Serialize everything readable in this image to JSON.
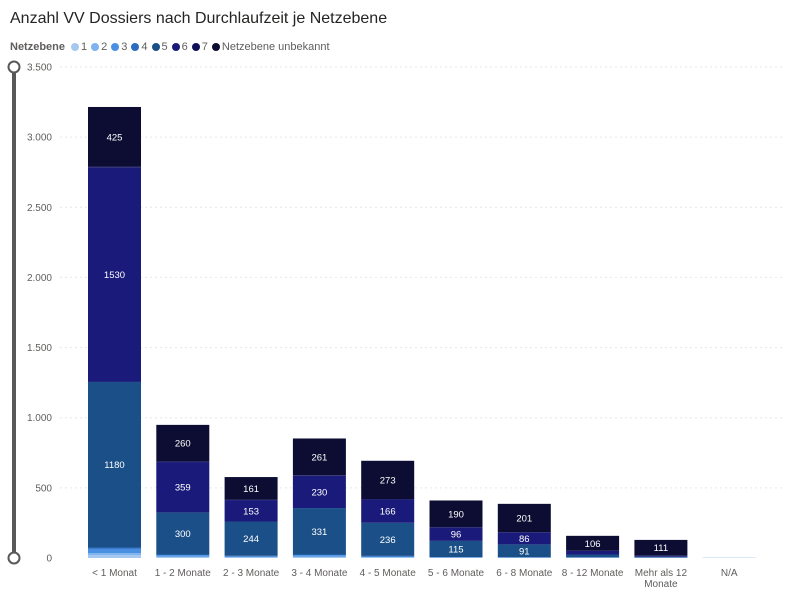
{
  "title": "Anzahl VV Dossiers nach Durchlaufzeit je Netzebene",
  "legend": {
    "title": "Netzebene",
    "items": [
      {
        "label": "1",
        "color": "#a6c8f0"
      },
      {
        "label": "2",
        "color": "#7fb3ee"
      },
      {
        "label": "3",
        "color": "#4a90e2"
      },
      {
        "label": "4",
        "color": "#2b6cc0"
      },
      {
        "label": "5",
        "color": "#1b4f88"
      },
      {
        "label": "6",
        "color": "#1a1a7a"
      },
      {
        "label": "7",
        "color": "#0f1157"
      },
      {
        "label": "Netzebene unbekannt",
        "color": "#0d0d33"
      }
    ]
  },
  "chart_data": {
    "type": "bar",
    "stacked": true,
    "title": "Anzahl VV Dossiers nach Durchlaufzeit je Netzebene",
    "xlabel": "",
    "ylabel": "",
    "ylim": [
      0,
      3500
    ],
    "yticks": [
      0,
      500,
      1000,
      1500,
      2000,
      2500,
      3000,
      3500
    ],
    "ytick_labels": [
      "0",
      "500",
      "1.000",
      "1.500",
      "2.000",
      "2.500",
      "3.000",
      "3.500"
    ],
    "grid": true,
    "legend_position": "top-left",
    "categories": [
      "< 1 Monat",
      "1 - 2 Monate",
      "2 - 3 Monate",
      "3 - 4 Monate",
      "4 - 5 Monate",
      "5 - 6 Monate",
      "6 - 8 Monate",
      "8 - 12 Monate",
      "Mehr als 12 Monate",
      "N/A"
    ],
    "series": [
      {
        "name": "1",
        "color": "#a6c8f0",
        "values": [
          20,
          5,
          3,
          5,
          3,
          1,
          1,
          1,
          1,
          2
        ]
      },
      {
        "name": "2",
        "color": "#7fb3ee",
        "values": [
          15,
          5,
          3,
          5,
          3,
          2,
          1,
          1,
          1,
          1
        ]
      },
      {
        "name": "3",
        "color": "#4a90e2",
        "values": [
          30,
          10,
          6,
          10,
          5,
          2,
          2,
          1,
          1,
          0
        ]
      },
      {
        "name": "4",
        "color": "#2b6cc0",
        "values": [
          10,
          5,
          4,
          5,
          4,
          2,
          2,
          2,
          1,
          0
        ]
      },
      {
        "name": "5",
        "color": "#1b4f88",
        "values": [
          1180,
          300,
          244,
          331,
          236,
          115,
          91,
          20,
          5,
          0
        ]
      },
      {
        "name": "6",
        "color": "#1a1a7a",
        "values": [
          1530,
          359,
          153,
          230,
          166,
          96,
          86,
          25,
          8,
          0
        ]
      },
      {
        "name": "7",
        "color": "#0f1157",
        "values": [
          5,
          5,
          3,
          5,
          3,
          2,
          2,
          2,
          1,
          0
        ]
      },
      {
        "name": "Netzebene unbekannt",
        "color": "#0d0d33",
        "values": [
          425,
          260,
          161,
          261,
          273,
          190,
          201,
          106,
          111,
          0
        ]
      }
    ],
    "data_labels": [
      {
        "category": "< 1 Monat",
        "series": "5",
        "text": "1180"
      },
      {
        "category": "< 1 Monat",
        "series": "6",
        "text": "1530"
      },
      {
        "category": "< 1 Monat",
        "series": "Netzebene unbekannt",
        "text": "425"
      },
      {
        "category": "1 - 2 Monate",
        "series": "5",
        "text": "300"
      },
      {
        "category": "1 - 2 Monate",
        "series": "6",
        "text": "359"
      },
      {
        "category": "1 - 2 Monate",
        "series": "Netzebene unbekannt",
        "text": "260"
      },
      {
        "category": "2 - 3 Monate",
        "series": "5",
        "text": "244"
      },
      {
        "category": "2 - 3 Monate",
        "series": "6",
        "text": "153"
      },
      {
        "category": "2 - 3 Monate",
        "series": "Netzebene unbekannt",
        "text": "161"
      },
      {
        "category": "3 - 4 Monate",
        "series": "5",
        "text": "331"
      },
      {
        "category": "3 - 4 Monate",
        "series": "6",
        "text": "230"
      },
      {
        "category": "3 - 4 Monate",
        "series": "Netzebene unbekannt",
        "text": "261"
      },
      {
        "category": "4 - 5 Monate",
        "series": "5",
        "text": "236"
      },
      {
        "category": "4 - 5 Monate",
        "series": "6",
        "text": "166"
      },
      {
        "category": "4 - 5 Monate",
        "series": "Netzebene unbekannt",
        "text": "273"
      },
      {
        "category": "5 - 6 Monate",
        "series": "5",
        "text": "115"
      },
      {
        "category": "5 - 6 Monate",
        "series": "6",
        "text": "96"
      },
      {
        "category": "5 - 6 Monate",
        "series": "Netzebene unbekannt",
        "text": "190"
      },
      {
        "category": "6 - 8 Monate",
        "series": "5",
        "text": "91"
      },
      {
        "category": "6 - 8 Monate",
        "series": "6",
        "text": "86"
      },
      {
        "category": "6 - 8 Monate",
        "series": "Netzebene unbekannt",
        "text": "201"
      },
      {
        "category": "8 - 12 Monate",
        "series": "Netzebene unbekannt",
        "text": "106"
      },
      {
        "category": "Mehr als 12 Monate",
        "series": "Netzebene unbekannt",
        "text": "111"
      }
    ]
  }
}
